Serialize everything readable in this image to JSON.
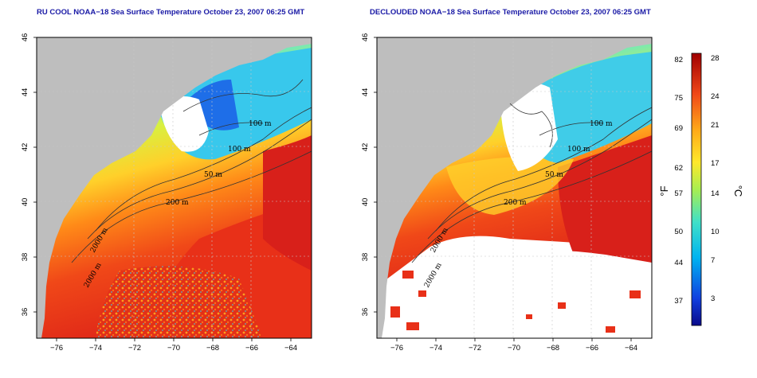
{
  "panels": [
    {
      "title": "RU COOL NOAA−18 Sea Surface Temperature October 23, 2007 06:25 GMT",
      "contour_labels": [
        "100 m",
        "100 m",
        "50 m",
        "200 m",
        "2000 m",
        "2000 m"
      ]
    },
    {
      "title": "DECLOUDED NOAA−18 Sea Surface Temperature October 23, 2007 06:25 GMT",
      "contour_labels": [
        "100 m",
        "100 m",
        "50 m",
        "200 m",
        "2000 m",
        "2000 m"
      ]
    }
  ],
  "axes": {
    "x_ticks": [
      "−76",
      "−74",
      "−72",
      "−70",
      "−68",
      "−66",
      "−64"
    ],
    "y_ticks": [
      "46",
      "44",
      "42",
      "40",
      "38",
      "36"
    ]
  },
  "colorbar": {
    "fahrenheit_ticks": [
      "82",
      "75",
      "69",
      "62",
      "57",
      "50",
      "44",
      "37"
    ],
    "celsius_ticks": [
      "28",
      "24",
      "21",
      "17",
      "14",
      "10",
      "7",
      "3"
    ],
    "fahrenheit_label": "°F",
    "celsius_label": "°C"
  },
  "colors": {
    "land": "#bebebe",
    "cloud": "#ffffff",
    "title": "#1a1aa6",
    "scale": [
      "#1010a0",
      "#1a5ae6",
      "#00c8f0",
      "#40e0c0",
      "#b8f050",
      "#ffe82a",
      "#ffa818",
      "#ff5a10",
      "#e01818",
      "#a00000"
    ]
  }
}
